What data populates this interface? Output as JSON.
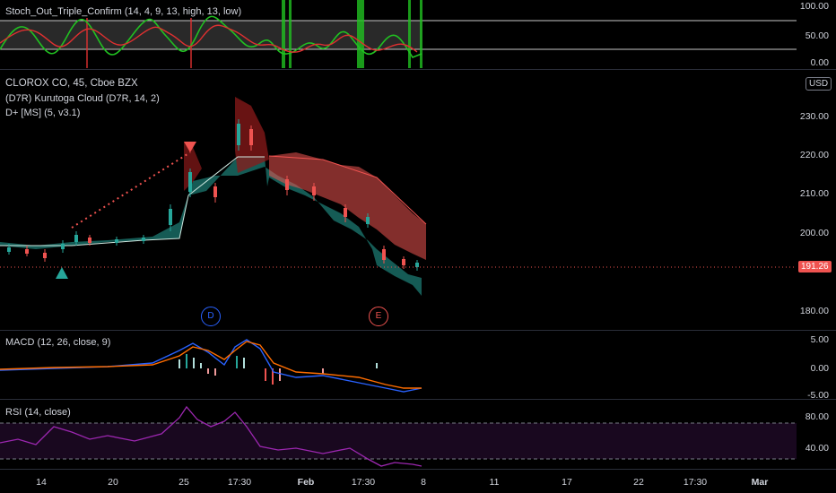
{
  "stoch": {
    "title": "Stoch_Out_Triple_Confirm (14, 4, 9, 13, high, 13, low)",
    "ticks": [
      "100.00",
      "50.00",
      "0.00"
    ]
  },
  "main": {
    "symbol_line": "CLOROX CO, 45, Cboe BZX",
    "indicator1": "(D7R) Kurutoga Cloud (D7R, 14, 2)",
    "indicator2": "D+ [MS] (5, v3.1)",
    "currency": "USD",
    "ticks": [
      "230.00",
      "220.00",
      "210.00",
      "200.00",
      "180.00"
    ],
    "price_badge": "191.26",
    "markers": [
      "D",
      "E"
    ]
  },
  "macd": {
    "title": "MACD (12, 26, close, 9)",
    "ticks": [
      "5.00",
      "0.00",
      "-5.00"
    ]
  },
  "rsi": {
    "title": "RSI (14, close)",
    "ticks": [
      "80.00",
      "40.00"
    ]
  },
  "xaxis": [
    "14",
    "20",
    "25",
    "17:30",
    "Feb",
    "17:30",
    "8",
    "11",
    "17",
    "22",
    "17:30",
    "Mar"
  ],
  "colors": {
    "bull": "#26a69a",
    "bear": "#ef5350",
    "stoch_k": "#21c021",
    "stoch_d": "#e03030",
    "macd": "#2962ff",
    "signal": "#ff6d00",
    "rsi": "#9c27b0"
  }
}
